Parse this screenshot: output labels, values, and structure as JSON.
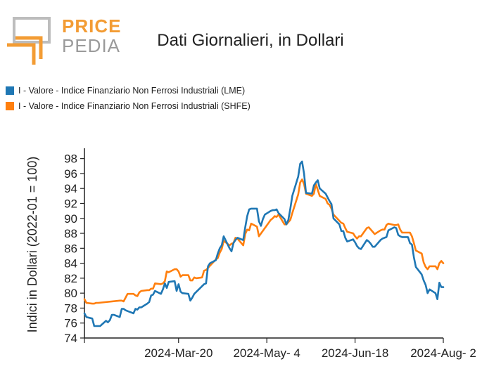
{
  "logo": {
    "top_text": "PRICE",
    "bottom_text": "PEDIA"
  },
  "colors": {
    "lme": "#1f77b4",
    "shfe": "#ff7f0e",
    "logo_orange": "#f39c34",
    "logo_grey": "#9a9a9a"
  },
  "chart_data": {
    "type": "line",
    "title": "Dati Giornalieri, in Dollari",
    "ylabel": "Indici in Dollari (2022-01 = 100)",
    "xlabel": "",
    "x_start": "2024-02-01",
    "x_end": "2024-08-02",
    "ylim": [
      74,
      99
    ],
    "yticks": [
      74,
      76,
      78,
      80,
      82,
      84,
      86,
      88,
      90,
      92,
      94,
      96,
      98
    ],
    "xticks": [
      {
        "date": "2024-03-20",
        "label": "2024-Mar-20"
      },
      {
        "date": "2024-05-04",
        "label": "2024-May- 4"
      },
      {
        "date": "2024-06-18",
        "label": "2024-Jun-18"
      },
      {
        "date": "2024-08-02",
        "label": "2024-Aug- 2"
      }
    ],
    "legend_position": "top-left",
    "grid": false,
    "series": [
      {
        "name": "I - Valore - Indice Finanziario Non Ferrosi Industriali (LME)",
        "color": "#1f77b4",
        "points": [
          [
            "2024-02-01",
            77.3
          ],
          [
            "2024-02-02",
            76.8
          ],
          [
            "2024-02-05",
            76.6
          ],
          [
            "2024-02-06",
            75.6
          ],
          [
            "2024-02-08",
            75.6
          ],
          [
            "2024-02-09",
            75.6
          ],
          [
            "2024-02-12",
            76.3
          ],
          [
            "2024-02-13",
            76.1
          ],
          [
            "2024-02-14",
            76.4
          ],
          [
            "2024-02-15",
            77.1
          ],
          [
            "2024-02-16",
            77.1
          ],
          [
            "2024-02-19",
            76.8
          ],
          [
            "2024-02-20",
            77.9
          ],
          [
            "2024-02-21",
            77.9
          ],
          [
            "2024-02-22",
            77.7
          ],
          [
            "2024-02-23",
            77.6
          ],
          [
            "2024-02-26",
            77.3
          ],
          [
            "2024-02-27",
            77.9
          ],
          [
            "2024-02-28",
            77.8
          ],
          [
            "2024-02-29",
            78.1
          ],
          [
            "2024-03-01",
            78.1
          ],
          [
            "2024-03-04",
            78.6
          ],
          [
            "2024-03-05",
            78.8
          ],
          [
            "2024-03-06",
            79.7
          ],
          [
            "2024-03-07",
            79.8
          ],
          [
            "2024-03-08",
            80.3
          ],
          [
            "2024-03-11",
            79.9
          ],
          [
            "2024-03-12",
            80.5
          ],
          [
            "2024-03-13",
            81.3
          ],
          [
            "2024-03-14",
            80.7
          ],
          [
            "2024-03-15",
            81.5
          ],
          [
            "2024-03-18",
            81.6
          ],
          [
            "2024-03-19",
            80.3
          ],
          [
            "2024-03-20",
            81.2
          ],
          [
            "2024-03-21",
            80.2
          ],
          [
            "2024-03-22",
            80.0
          ],
          [
            "2024-03-25",
            79.9
          ],
          [
            "2024-03-26",
            79.0
          ],
          [
            "2024-03-27",
            79.4
          ],
          [
            "2024-03-28",
            79.9
          ],
          [
            "2024-04-02",
            81.2
          ],
          [
            "2024-04-03",
            81.3
          ],
          [
            "2024-04-04",
            83.6
          ],
          [
            "2024-04-05",
            84.0
          ],
          [
            "2024-04-08",
            84.4
          ],
          [
            "2024-04-09",
            85.3
          ],
          [
            "2024-04-10",
            86.0
          ],
          [
            "2024-04-11",
            86.4
          ],
          [
            "2024-04-12",
            87.6
          ],
          [
            "2024-04-15",
            86.0
          ],
          [
            "2024-04-16",
            85.6
          ],
          [
            "2024-04-17",
            86.7
          ],
          [
            "2024-04-18",
            87.1
          ],
          [
            "2024-04-19",
            87.4
          ],
          [
            "2024-04-22",
            87.1
          ],
          [
            "2024-04-23",
            88.8
          ],
          [
            "2024-04-24",
            90.3
          ],
          [
            "2024-04-25",
            91.2
          ],
          [
            "2024-04-26",
            91.3
          ],
          [
            "2024-04-29",
            91.3
          ],
          [
            "2024-04-30",
            89.6
          ],
          [
            "2024-05-01",
            89.0
          ],
          [
            "2024-05-02",
            89.9
          ],
          [
            "2024-05-03",
            90.5
          ],
          [
            "2024-05-06",
            91.0
          ],
          [
            "2024-05-07",
            91.1
          ],
          [
            "2024-05-08",
            91.1
          ],
          [
            "2024-05-09",
            91.2
          ],
          [
            "2024-05-10",
            90.7
          ],
          [
            "2024-05-13",
            89.9
          ],
          [
            "2024-05-14",
            89.2
          ],
          [
            "2024-05-15",
            89.8
          ],
          [
            "2024-05-16",
            91.3
          ],
          [
            "2024-05-17",
            93.0
          ],
          [
            "2024-05-20",
            95.6
          ],
          [
            "2024-05-21",
            97.3
          ],
          [
            "2024-05-22",
            97.6
          ],
          [
            "2024-05-23",
            96.0
          ],
          [
            "2024-05-24",
            93.4
          ],
          [
            "2024-05-27",
            93.3
          ],
          [
            "2024-05-28",
            94.4
          ],
          [
            "2024-05-29",
            94.8
          ],
          [
            "2024-05-30",
            95.1
          ],
          [
            "2024-05-31",
            94.0
          ],
          [
            "2024-06-03",
            93.3
          ],
          [
            "2024-06-04",
            92.8
          ],
          [
            "2024-06-05",
            92.3
          ],
          [
            "2024-06-06",
            91.9
          ],
          [
            "2024-06-07",
            90.0
          ],
          [
            "2024-06-10",
            89.2
          ],
          [
            "2024-06-11",
            88.3
          ],
          [
            "2024-06-12",
            88.3
          ],
          [
            "2024-06-13",
            87.4
          ],
          [
            "2024-06-14",
            86.9
          ],
          [
            "2024-06-17",
            87.2
          ],
          [
            "2024-06-18",
            86.8
          ],
          [
            "2024-06-19",
            86.3
          ],
          [
            "2024-06-20",
            86.0
          ],
          [
            "2024-06-21",
            85.9
          ],
          [
            "2024-06-24",
            87.1
          ],
          [
            "2024-06-25",
            86.9
          ],
          [
            "2024-06-26",
            86.6
          ],
          [
            "2024-06-27",
            86.2
          ],
          [
            "2024-06-28",
            86.2
          ],
          [
            "2024-07-01",
            87.1
          ],
          [
            "2024-07-02",
            87.3
          ],
          [
            "2024-07-03",
            87.4
          ],
          [
            "2024-07-04",
            87.5
          ],
          [
            "2024-07-05",
            88.4
          ],
          [
            "2024-07-08",
            88.8
          ],
          [
            "2024-07-09",
            88.7
          ],
          [
            "2024-07-10",
            87.8
          ],
          [
            "2024-07-11",
            87.6
          ],
          [
            "2024-07-12",
            87.5
          ],
          [
            "2024-07-15",
            87.5
          ],
          [
            "2024-07-16",
            86.7
          ],
          [
            "2024-07-17",
            86.5
          ],
          [
            "2024-07-18",
            84.8
          ],
          [
            "2024-07-19",
            83.5
          ],
          [
            "2024-07-22",
            82.5
          ],
          [
            "2024-07-23",
            81.7
          ],
          [
            "2024-07-24",
            81.1
          ],
          [
            "2024-07-25",
            80.0
          ],
          [
            "2024-07-26",
            80.5
          ],
          [
            "2024-07-29",
            80.0
          ],
          [
            "2024-07-30",
            79.2
          ],
          [
            "2024-07-31",
            81.4
          ],
          [
            "2024-08-01",
            80.8
          ],
          [
            "2024-08-02",
            80.8
          ]
        ]
      },
      {
        "name": "I - Valore - Indice Finanziario Non Ferrosi Industriali (SHFE)",
        "color": "#ff7f0e",
        "points": [
          [
            "2024-02-01",
            79.2
          ],
          [
            "2024-02-02",
            78.7
          ],
          [
            "2024-02-05",
            78.6
          ],
          [
            "2024-02-06",
            78.6
          ],
          [
            "2024-02-07",
            78.7
          ],
          [
            "2024-02-08",
            78.7
          ],
          [
            "2024-02-19",
            79.0
          ],
          [
            "2024-02-20",
            79.0
          ],
          [
            "2024-02-21",
            78.9
          ],
          [
            "2024-02-22",
            79.4
          ],
          [
            "2024-02-23",
            79.9
          ],
          [
            "2024-02-26",
            79.9
          ],
          [
            "2024-02-27",
            79.7
          ],
          [
            "2024-02-28",
            79.6
          ],
          [
            "2024-02-29",
            80.1
          ],
          [
            "2024-03-01",
            80.3
          ],
          [
            "2024-03-04",
            80.4
          ],
          [
            "2024-03-05",
            80.4
          ],
          [
            "2024-03-06",
            80.6
          ],
          [
            "2024-03-07",
            80.6
          ],
          [
            "2024-03-08",
            81.3
          ],
          [
            "2024-03-11",
            81.2
          ],
          [
            "2024-03-12",
            81.3
          ],
          [
            "2024-03-13",
            81.6
          ],
          [
            "2024-03-14",
            82.9
          ],
          [
            "2024-03-15",
            82.8
          ],
          [
            "2024-03-18",
            83.2
          ],
          [
            "2024-03-19",
            83.2
          ],
          [
            "2024-03-20",
            82.9
          ],
          [
            "2024-03-21",
            82.2
          ],
          [
            "2024-03-22",
            82.4
          ],
          [
            "2024-03-25",
            82.4
          ],
          [
            "2024-03-26",
            81.7
          ],
          [
            "2024-03-27",
            81.7
          ],
          [
            "2024-03-28",
            82.1
          ],
          [
            "2024-03-29",
            82.0
          ],
          [
            "2024-04-01",
            82.1
          ],
          [
            "2024-04-02",
            83.0
          ],
          [
            "2024-04-03",
            83.1
          ],
          [
            "2024-04-08",
            84.5
          ],
          [
            "2024-04-09",
            84.7
          ],
          [
            "2024-04-10",
            85.4
          ],
          [
            "2024-04-11",
            85.9
          ],
          [
            "2024-04-12",
            87.0
          ],
          [
            "2024-04-15",
            86.4
          ],
          [
            "2024-04-16",
            86.6
          ],
          [
            "2024-04-17",
            86.7
          ],
          [
            "2024-04-18",
            87.4
          ],
          [
            "2024-04-19",
            87.3
          ],
          [
            "2024-04-22",
            86.4
          ],
          [
            "2024-04-23",
            87.9
          ],
          [
            "2024-04-24",
            88.5
          ],
          [
            "2024-04-25",
            88.4
          ],
          [
            "2024-04-26",
            89.3
          ],
          [
            "2024-04-29",
            88.9
          ],
          [
            "2024-04-30",
            87.6
          ],
          [
            "2024-05-06",
            89.8
          ],
          [
            "2024-05-07",
            90.0
          ],
          [
            "2024-05-08",
            90.3
          ],
          [
            "2024-05-09",
            90.2
          ],
          [
            "2024-05-10",
            90.5
          ],
          [
            "2024-05-13",
            89.2
          ],
          [
            "2024-05-14",
            89.2
          ],
          [
            "2024-05-15",
            89.5
          ],
          [
            "2024-05-16",
            89.8
          ],
          [
            "2024-05-17",
            90.7
          ],
          [
            "2024-05-20",
            93.2
          ],
          [
            "2024-05-21",
            94.8
          ],
          [
            "2024-05-22",
            95.2
          ],
          [
            "2024-05-23",
            94.6
          ],
          [
            "2024-05-24",
            93.3
          ],
          [
            "2024-05-27",
            93.0
          ],
          [
            "2024-05-28",
            93.3
          ],
          [
            "2024-05-29",
            94.6
          ],
          [
            "2024-05-30",
            93.8
          ],
          [
            "2024-05-31",
            93.0
          ],
          [
            "2024-06-03",
            92.6
          ],
          [
            "2024-06-04",
            92.0
          ],
          [
            "2024-06-05",
            91.8
          ],
          [
            "2024-06-06",
            91.3
          ],
          [
            "2024-06-07",
            90.5
          ],
          [
            "2024-06-11",
            89.4
          ],
          [
            "2024-06-12",
            89.3
          ],
          [
            "2024-06-13",
            88.7
          ],
          [
            "2024-06-14",
            88.2
          ],
          [
            "2024-06-17",
            88.0
          ],
          [
            "2024-06-18",
            87.6
          ],
          [
            "2024-06-19",
            87.3
          ],
          [
            "2024-06-20",
            87.6
          ],
          [
            "2024-06-21",
            87.6
          ],
          [
            "2024-06-24",
            88.7
          ],
          [
            "2024-06-25",
            88.8
          ],
          [
            "2024-06-26",
            88.5
          ],
          [
            "2024-06-27",
            88.2
          ],
          [
            "2024-06-28",
            87.9
          ],
          [
            "2024-07-01",
            88.4
          ],
          [
            "2024-07-02",
            88.5
          ],
          [
            "2024-07-03",
            88.5
          ],
          [
            "2024-07-04",
            89.1
          ],
          [
            "2024-07-05",
            89.3
          ],
          [
            "2024-07-08",
            89.1
          ],
          [
            "2024-07-09",
            89.1
          ],
          [
            "2024-07-10",
            89.2
          ],
          [
            "2024-07-11",
            88.5
          ],
          [
            "2024-07-12",
            88.1
          ],
          [
            "2024-07-15",
            88.1
          ],
          [
            "2024-07-16",
            88.1
          ],
          [
            "2024-07-17",
            87.6
          ],
          [
            "2024-07-18",
            86.7
          ],
          [
            "2024-07-19",
            85.7
          ],
          [
            "2024-07-22",
            85.3
          ],
          [
            "2024-07-23",
            84.1
          ],
          [
            "2024-07-24",
            83.5
          ],
          [
            "2024-07-25",
            83.2
          ],
          [
            "2024-07-26",
            83.6
          ],
          [
            "2024-07-29",
            83.6
          ],
          [
            "2024-07-30",
            83.2
          ],
          [
            "2024-07-31",
            84.0
          ],
          [
            "2024-08-01",
            84.3
          ],
          [
            "2024-08-02",
            84.0
          ]
        ]
      }
    ]
  }
}
